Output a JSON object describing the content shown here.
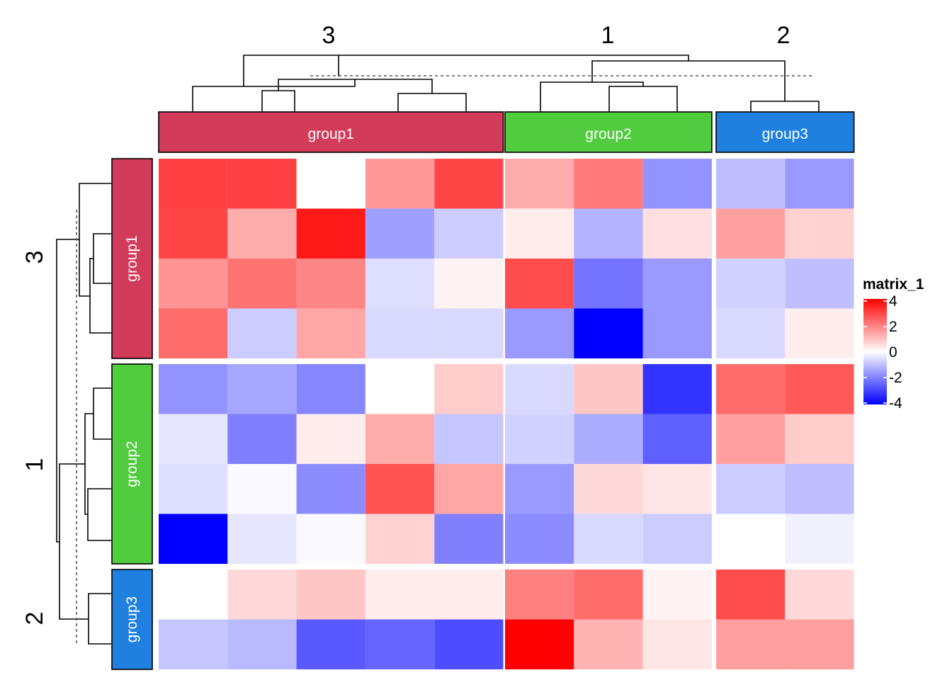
{
  "chart_data": {
    "type": "heatmap",
    "legend": {
      "title": "matrix_1",
      "ticks": [
        "4",
        "2",
        "0",
        "-2",
        "-4"
      ],
      "tick_values": [
        4,
        2,
        0,
        -2,
        -4
      ],
      "colors": {
        "low": "#0000FF",
        "mid": "#FFFFFF",
        "high": "#FF0000"
      },
      "range": [
        -4,
        4
      ],
      "placement": "right"
    },
    "column_splits": [
      {
        "cluster_label": "3",
        "group": "group1",
        "color": "#D33B5A",
        "n": 5
      },
      {
        "cluster_label": "1",
        "group": "group2",
        "color": "#52CC3F",
        "n": 3
      },
      {
        "cluster_label": "2",
        "group": "group3",
        "color": "#1F80E0",
        "n": 2
      }
    ],
    "row_splits": [
      {
        "cluster_label": "3",
        "group": "group1",
        "color": "#D33B5A",
        "n": 4
      },
      {
        "cluster_label": "1",
        "group": "group2",
        "color": "#52CC3F",
        "n": 4
      },
      {
        "cluster_label": "2",
        "group": "group3",
        "color": "#1F80E0",
        "n": 2
      }
    ],
    "values": [
      [
        3.0,
        3.0,
        0.0,
        1.6,
        2.9,
        1.3,
        2.1,
        -1.7,
        -1.0,
        -1.6
      ],
      [
        2.9,
        1.3,
        3.6,
        -1.5,
        -0.8,
        0.3,
        -1.2,
        0.5,
        1.5,
        0.7
      ],
      [
        1.7,
        2.2,
        1.9,
        -0.5,
        0.2,
        2.8,
        -2.2,
        -1.6,
        -0.7,
        -1.0
      ],
      [
        2.3,
        -0.8,
        1.4,
        -0.6,
        -0.6,
        -1.6,
        -4.2,
        -1.6,
        -0.6,
        0.3
      ],
      [
        -1.7,
        -1.4,
        -1.9,
        0.0,
        0.8,
        -0.6,
        0.9,
        -3.2,
        2.3,
        2.6
      ],
      [
        -0.4,
        -2.0,
        0.3,
        1.3,
        -0.9,
        -0.7,
        -1.3,
        -2.5,
        1.5,
        0.8
      ],
      [
        -0.5,
        -0.1,
        -1.8,
        2.7,
        1.4,
        -1.6,
        0.6,
        0.4,
        -0.8,
        -1.0
      ],
      [
        -4.0,
        -0.4,
        -0.1,
        0.7,
        -2.0,
        -1.8,
        -0.6,
        -0.8,
        0.0,
        -0.2
      ],
      [
        0.0,
        0.6,
        0.9,
        0.3,
        0.3,
        2.0,
        2.3,
        0.2,
        2.8,
        0.6
      ],
      [
        -0.9,
        -1.1,
        -2.6,
        -2.4,
        -2.8,
        4.0,
        1.2,
        0.4,
        1.5,
        1.5
      ]
    ],
    "grid": false
  }
}
